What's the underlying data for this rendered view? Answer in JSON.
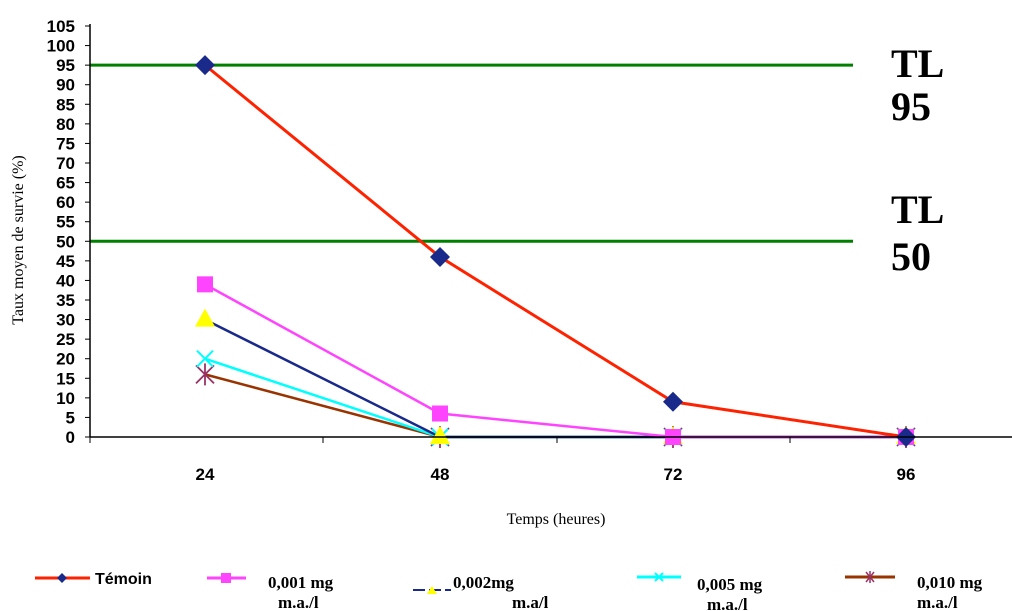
{
  "chart_data": {
    "type": "line",
    "xlabel": "Temps (heures)",
    "ylabel": "Taux moyen de survie (%)",
    "categories": [
      "24",
      "48",
      "72",
      "96"
    ],
    "ylim": [
      0,
      105
    ],
    "yticks": [
      "0",
      "5",
      "10",
      "15",
      "20",
      "25",
      "30",
      "35",
      "40",
      "45",
      "50",
      "55",
      "60",
      "65",
      "70",
      "75",
      "80",
      "85",
      "90",
      "95",
      "100",
      "105"
    ],
    "grid": false,
    "legend_position": "bottom",
    "series": [
      {
        "name": "Témoin",
        "values": [
          95,
          46,
          9,
          0
        ],
        "line_color": "#ff2200",
        "marker": "diamond",
        "marker_color": "#1a2a8a"
      },
      {
        "name_line1": "0,001 mg",
        "name_line2": "m.a./l",
        "values": [
          39,
          6,
          0,
          0
        ],
        "line_color": "#ff44ff",
        "marker": "square",
        "marker_color": "#ff44ff"
      },
      {
        "name_line1": "0,002mg",
        "name_line2": "m.a/l",
        "values": [
          30,
          0,
          0,
          0
        ],
        "line_color": "#1a2a8a",
        "marker": "triangle",
        "marker_color": "#ffff00"
      },
      {
        "name_line1": "0,005 mg",
        "name_line2": "m.a./l",
        "values": [
          20,
          0,
          0,
          0
        ],
        "line_color": "#00ffff",
        "marker": "x",
        "marker_color": "#00ffff"
      },
      {
        "name_line1": "0,010 mg",
        "name_line2": "m.a./l",
        "values": [
          16,
          0,
          0,
          0
        ],
        "line_color": "#993300",
        "marker": "star",
        "marker_color": "#993366"
      }
    ],
    "reference_lines": [
      {
        "label_line1": "TL",
        "label_line2": "95",
        "value": 95,
        "color": "#008000"
      },
      {
        "label_line1": "TL",
        "label_line2": "50",
        "value": 50,
        "color": "#008000"
      }
    ]
  }
}
